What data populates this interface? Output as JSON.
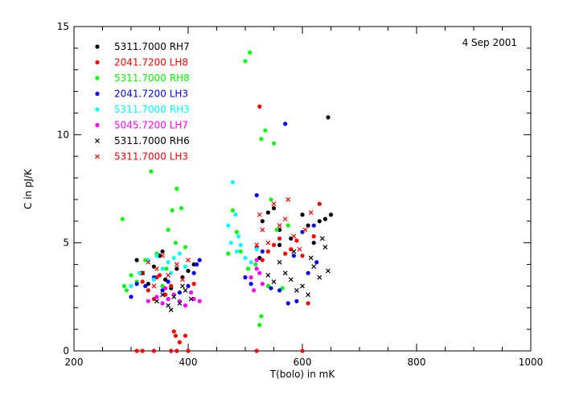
{
  "chart_data": {
    "type": "scatter",
    "title": "",
    "date_label": "4 Sep 2001",
    "xlabel": "T(bolo) in mK",
    "ylabel": "C in pJ/K",
    "xlim": [
      200,
      1000
    ],
    "ylim": [
      0,
      15
    ],
    "x_ticks": [
      200,
      400,
      600,
      800,
      1000
    ],
    "y_ticks": [
      0,
      5,
      10,
      15
    ],
    "grid": false,
    "legend_position": "top-left",
    "series": [
      {
        "name": "5311.7000 RH7",
        "color": "#000000",
        "marker": "dot",
        "points": [
          [
            310,
            4.2
          ],
          [
            320,
            3.6
          ],
          [
            330,
            3.1
          ],
          [
            340,
            3.9
          ],
          [
            350,
            4.4
          ],
          [
            360,
            3.3
          ],
          [
            370,
            2.9
          ],
          [
            380,
            3.8
          ],
          [
            390,
            3.4
          ],
          [
            400,
            3.7
          ],
          [
            410,
            4.0
          ],
          [
            355,
            4.6
          ],
          [
            530,
            6.0
          ],
          [
            540,
            6.4
          ],
          [
            550,
            6.6
          ],
          [
            560,
            5.6
          ],
          [
            580,
            5.2
          ],
          [
            600,
            6.3
          ],
          [
            610,
            5.8
          ],
          [
            620,
            5.0
          ],
          [
            630,
            6.0
          ],
          [
            640,
            6.1
          ],
          [
            650,
            6.3
          ],
          [
            645,
            10.8
          ],
          [
            525,
            4.3
          ],
          [
            560,
            4.9
          ]
        ]
      },
      {
        "name": "2041.7200 LH8",
        "color": "#ff0000",
        "marker": "dot",
        "points": [
          [
            320,
            3.2
          ],
          [
            330,
            2.8
          ],
          [
            340,
            2.4
          ],
          [
            350,
            3.5
          ],
          [
            360,
            2.6
          ],
          [
            370,
            3.0
          ],
          [
            375,
            0.9
          ],
          [
            378,
            0.7
          ],
          [
            385,
            0.4
          ],
          [
            395,
            0.7
          ],
          [
            400,
            0.0
          ],
          [
            410,
            3.1
          ],
          [
            345,
            3.4
          ],
          [
            310,
            0.0
          ],
          [
            320,
            0.0
          ],
          [
            340,
            0.0
          ],
          [
            370,
            0.0
          ],
          [
            380,
            0.0
          ],
          [
            525,
            11.3
          ],
          [
            520,
            4.8
          ],
          [
            530,
            4.2
          ],
          [
            540,
            4.6
          ],
          [
            550,
            4.9
          ],
          [
            560,
            5.2
          ],
          [
            570,
            4.5
          ],
          [
            580,
            4.7
          ],
          [
            590,
            5.1
          ],
          [
            600,
            4.4
          ],
          [
            610,
            2.2
          ],
          [
            620,
            5.3
          ],
          [
            630,
            6.8
          ],
          [
            520,
            0.0
          ],
          [
            600,
            0.0
          ]
        ]
      },
      {
        "name": "5311.7000 RH8",
        "color": "#00ff00",
        "marker": "dot",
        "points": [
          [
            285,
            6.1
          ],
          [
            288,
            3.0
          ],
          [
            292,
            2.8
          ],
          [
            300,
            3.5
          ],
          [
            310,
            3.2
          ],
          [
            325,
            4.2
          ],
          [
            335,
            8.3
          ],
          [
            345,
            4.5
          ],
          [
            355,
            3.0
          ],
          [
            365,
            5.6
          ],
          [
            372,
            6.5
          ],
          [
            380,
            7.5
          ],
          [
            388,
            6.6
          ],
          [
            395,
            4.8
          ],
          [
            362,
            3.8
          ],
          [
            378,
            5.0
          ],
          [
            470,
            4.5
          ],
          [
            478,
            6.5
          ],
          [
            485,
            5.5
          ],
          [
            492,
            4.6
          ],
          [
            500,
            13.4
          ],
          [
            508,
            13.8
          ],
          [
            518,
            4.0
          ],
          [
            528,
            9.8
          ],
          [
            535,
            10.2
          ],
          [
            540,
            3.0
          ],
          [
            545,
            7.0
          ],
          [
            550,
            9.6
          ],
          [
            555,
            5.6
          ],
          [
            565,
            2.9
          ],
          [
            575,
            5.8
          ],
          [
            525,
            1.2
          ],
          [
            528,
            1.6
          ],
          [
            505,
            3.8
          ]
        ]
      },
      {
        "name": "2041.7200 LH3",
        "color": "#0000ff",
        "marker": "dot",
        "points": [
          [
            300,
            2.5
          ],
          [
            310,
            3.1
          ],
          [
            325,
            3.0
          ],
          [
            340,
            3.4
          ],
          [
            355,
            2.8
          ],
          [
            365,
            3.2
          ],
          [
            385,
            2.7
          ],
          [
            400,
            3.0
          ],
          [
            410,
            3.6
          ],
          [
            415,
            4.0
          ],
          [
            420,
            4.2
          ],
          [
            500,
            3.4
          ],
          [
            510,
            3.1
          ],
          [
            520,
            7.2
          ],
          [
            530,
            4.6
          ],
          [
            545,
            2.9
          ],
          [
            560,
            2.8
          ],
          [
            570,
            10.5
          ],
          [
            575,
            2.2
          ],
          [
            585,
            4.4
          ],
          [
            590,
            2.3
          ],
          [
            600,
            5.5
          ],
          [
            610,
            3.6
          ],
          [
            620,
            5.8
          ],
          [
            625,
            4.1
          ]
        ]
      },
      {
        "name": "5311.7000 RH3",
        "color": "#00ffff",
        "marker": "dot",
        "points": [
          [
            300,
            3.0
          ],
          [
            315,
            3.6
          ],
          [
            330,
            4.2
          ],
          [
            345,
            4.4
          ],
          [
            355,
            3.8
          ],
          [
            365,
            4.1
          ],
          [
            375,
            4.3
          ],
          [
            385,
            4.5
          ],
          [
            395,
            3.9
          ],
          [
            340,
            3.3
          ],
          [
            370,
            3.6
          ],
          [
            470,
            5.8
          ],
          [
            478,
            7.8
          ],
          [
            483,
            6.3
          ],
          [
            488,
            5.3
          ],
          [
            492,
            4.9
          ],
          [
            500,
            4.3
          ],
          [
            510,
            4.1
          ],
          [
            520,
            4.7
          ],
          [
            475,
            5.0
          ],
          [
            485,
            4.6
          ]
        ]
      },
      {
        "name": "5045.7200 LH7",
        "color": "#ff00ff",
        "marker": "dot",
        "points": [
          [
            330,
            2.3
          ],
          [
            345,
            2.5
          ],
          [
            355,
            2.2
          ],
          [
            365,
            2.4
          ],
          [
            375,
            2.6
          ],
          [
            385,
            2.3
          ],
          [
            395,
            2.1
          ],
          [
            405,
            2.7
          ],
          [
            410,
            2.4
          ],
          [
            420,
            2.3
          ],
          [
            360,
            2.9
          ],
          [
            510,
            3.4
          ],
          [
            515,
            2.8
          ],
          [
            520,
            3.8
          ],
          [
            525,
            3.6
          ],
          [
            530,
            3.1
          ],
          [
            520,
            4.2
          ]
        ]
      },
      {
        "name": "5311.7000 RH6",
        "color": "#000000",
        "marker": "x",
        "points": [
          [
            345,
            2.3
          ],
          [
            355,
            2.6
          ],
          [
            365,
            2.1
          ],
          [
            375,
            2.5
          ],
          [
            385,
            2.2
          ],
          [
            395,
            2.8
          ],
          [
            405,
            2.4
          ],
          [
            370,
            1.9
          ],
          [
            390,
            3.0
          ],
          [
            540,
            3.5
          ],
          [
            550,
            3.2
          ],
          [
            560,
            4.1
          ],
          [
            570,
            3.6
          ],
          [
            580,
            3.3
          ],
          [
            585,
            4.6
          ],
          [
            590,
            2.8
          ],
          [
            600,
            3.0
          ],
          [
            610,
            2.6
          ],
          [
            615,
            4.3
          ],
          [
            620,
            3.9
          ],
          [
            630,
            3.4
          ],
          [
            640,
            4.8
          ],
          [
            645,
            3.7
          ],
          [
            635,
            5.2
          ]
        ]
      },
      {
        "name": "5311.7000 LH3",
        "color": "#ff0000",
        "marker": "x",
        "points": [
          [
            320,
            3.6
          ],
          [
            330,
            4.1
          ],
          [
            345,
            3.8
          ],
          [
            355,
            4.4
          ],
          [
            365,
            3.5
          ],
          [
            380,
            4.0
          ],
          [
            390,
            3.3
          ],
          [
            400,
            4.2
          ],
          [
            340,
            3.0
          ],
          [
            520,
            4.9
          ],
          [
            530,
            5.6
          ],
          [
            540,
            5.0
          ],
          [
            550,
            6.8
          ],
          [
            560,
            5.8
          ],
          [
            570,
            6.1
          ],
          [
            575,
            7.0
          ],
          [
            585,
            5.3
          ],
          [
            595,
            4.7
          ],
          [
            605,
            5.6
          ],
          [
            615,
            6.4
          ],
          [
            525,
            6.3
          ]
        ]
      }
    ]
  }
}
